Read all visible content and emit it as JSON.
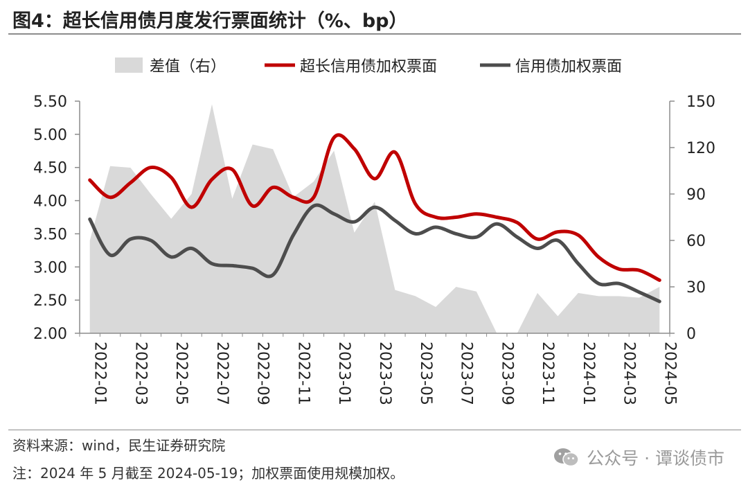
{
  "title": "图4：超长信用债月度发行票面统计（%、bp）",
  "source": "资料来源：wind，民生证券研究院",
  "note": "注：2024 年 5 月截至 2024-05-19；加权票面使用规模加权。",
  "watermark": "公众号 · 谭谈债市",
  "watermark_icon": "wechat-icon",
  "chart_data": {
    "type": "line",
    "title": "超长信用债月度发行票面统计（%、bp）",
    "x": [
      "2022-01",
      "2022-02",
      "2022-03",
      "2022-04",
      "2022-05",
      "2022-06",
      "2022-07",
      "2022-08",
      "2022-09",
      "2022-10",
      "2022-11",
      "2022-12",
      "2023-01",
      "2023-02",
      "2023-03",
      "2023-04",
      "2023-05",
      "2023-06",
      "2023-07",
      "2023-08",
      "2023-09",
      "2023-10",
      "2023-11",
      "2023-12",
      "2024-01",
      "2024-02",
      "2024-03",
      "2024-04",
      "2024-05"
    ],
    "x_tick_labels": [
      "2022-01",
      "2022-03",
      "2022-05",
      "2022-07",
      "2022-09",
      "2022-11",
      "2023-01",
      "2023-03",
      "2023-05",
      "2023-07",
      "2023-09",
      "2023-11",
      "2024-01",
      "2024-03",
      "2024-05"
    ],
    "ylim_left": [
      2.0,
      5.5
    ],
    "yticks_left": [
      "5.50",
      "5.00",
      "4.50",
      "4.00",
      "3.50",
      "3.00",
      "2.50",
      "2.00"
    ],
    "ylim_right": [
      0,
      150
    ],
    "yticks_right": [
      "150",
      "120",
      "90",
      "60",
      "30",
      "0"
    ],
    "series": [
      {
        "name": "差值（右）",
        "type": "area",
        "axis": "right",
        "color": "#d9d9d9",
        "values": [
          60,
          108,
          107,
          90,
          74,
          90,
          148,
          87,
          122,
          119,
          88,
          98,
          118,
          65,
          85,
          28,
          24,
          17,
          30,
          27,
          0,
          0,
          26,
          11,
          26,
          24,
          24,
          23,
          30
        ]
      },
      {
        "name": "超长信用债加权票面",
        "type": "line",
        "axis": "left",
        "color": "#c00000",
        "values": [
          4.31,
          4.05,
          4.27,
          4.5,
          4.35,
          3.9,
          4.32,
          4.47,
          3.92,
          4.2,
          4.05,
          4.05,
          4.95,
          4.78,
          4.33,
          4.73,
          3.95,
          3.75,
          3.75,
          3.8,
          3.75,
          3.67,
          3.42,
          3.53,
          3.48,
          3.15,
          2.97,
          2.95,
          2.8
        ]
      },
      {
        "name": "信用债加权票面",
        "type": "line",
        "axis": "left",
        "color": "#4d4d4d",
        "values": [
          3.72,
          3.18,
          3.42,
          3.4,
          3.15,
          3.28,
          3.05,
          3.02,
          2.98,
          2.88,
          3.48,
          3.92,
          3.8,
          3.68,
          3.9,
          3.7,
          3.5,
          3.6,
          3.5,
          3.45,
          3.65,
          3.45,
          3.28,
          3.4,
          3.05,
          2.75,
          2.75,
          2.62,
          2.48
        ]
      }
    ]
  }
}
